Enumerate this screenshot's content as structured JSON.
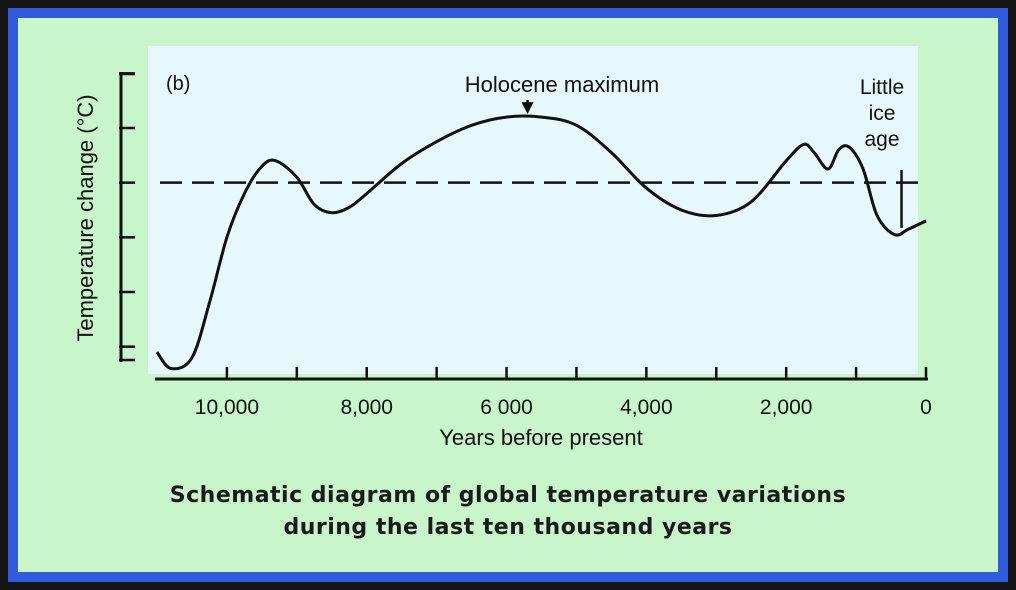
{
  "chart_data": {
    "type": "line",
    "panel_label": "(b)",
    "xlabel": "Years before present",
    "ylabel": "Temperature change (°C)",
    "x_reversed": true,
    "xlim": [
      11000,
      0
    ],
    "ylim": [
      -3.5,
      2.5
    ],
    "x_tick_values": [
      10000,
      9000,
      8000,
      7000,
      6000,
      5000,
      4000,
      3000,
      2000,
      1000,
      0
    ],
    "x_tick_labels": [
      {
        "value": 10000,
        "label": "10,000"
      },
      {
        "value": 8000,
        "label": "8,000"
      },
      {
        "value": 6000,
        "label": "6 000"
      },
      {
        "value": 4000,
        "label": "4,000"
      },
      {
        "value": 2000,
        "label": "2,000"
      },
      {
        "value": 0,
        "label": "0"
      }
    ],
    "y_tick_values": [
      -3,
      -2,
      -1,
      0,
      1,
      2
    ],
    "y_tick_labels": [],
    "reference_line": {
      "y": 0,
      "style": "dashed"
    },
    "series": [
      {
        "points": [
          [
            11000,
            -3.1
          ],
          [
            10800,
            -3.4
          ],
          [
            10500,
            -3.2
          ],
          [
            10250,
            -2.2
          ],
          [
            10000,
            -1.0
          ],
          [
            9750,
            -0.2
          ],
          [
            9500,
            0.3
          ],
          [
            9300,
            0.4
          ],
          [
            9000,
            0.1
          ],
          [
            8750,
            -0.4
          ],
          [
            8500,
            -0.55
          ],
          [
            8250,
            -0.45
          ],
          [
            8000,
            -0.2
          ],
          [
            7500,
            0.35
          ],
          [
            7000,
            0.75
          ],
          [
            6500,
            1.05
          ],
          [
            6000,
            1.2
          ],
          [
            5500,
            1.2
          ],
          [
            5000,
            1.05
          ],
          [
            4500,
            0.55
          ],
          [
            4000,
            -0.1
          ],
          [
            3500,
            -0.5
          ],
          [
            3000,
            -0.6
          ],
          [
            2500,
            -0.35
          ],
          [
            2000,
            0.4
          ],
          [
            1750,
            0.7
          ],
          [
            1600,
            0.55
          ],
          [
            1400,
            0.25
          ],
          [
            1250,
            0.6
          ],
          [
            1100,
            0.65
          ],
          [
            900,
            0.25
          ],
          [
            700,
            -0.6
          ],
          [
            450,
            -0.95
          ],
          [
            250,
            -0.85
          ],
          [
            0,
            -0.7
          ]
        ]
      }
    ],
    "annotations": [
      {
        "text": "Holocene maximum",
        "x": 5700,
        "arrow_to_y": 1.2
      },
      {
        "text": [
          "Little",
          "ice",
          "age"
        ],
        "x": 350,
        "arrow_to_y": -0.9
      }
    ],
    "caption": [
      "Schematic diagram of global temperature variations",
      "during the last ten thousand years"
    ]
  },
  "colors": {
    "frame": "#2f5bdc",
    "panel": "#c8f5c9",
    "plot": "#e6f8fb",
    "ink": "#111111"
  }
}
